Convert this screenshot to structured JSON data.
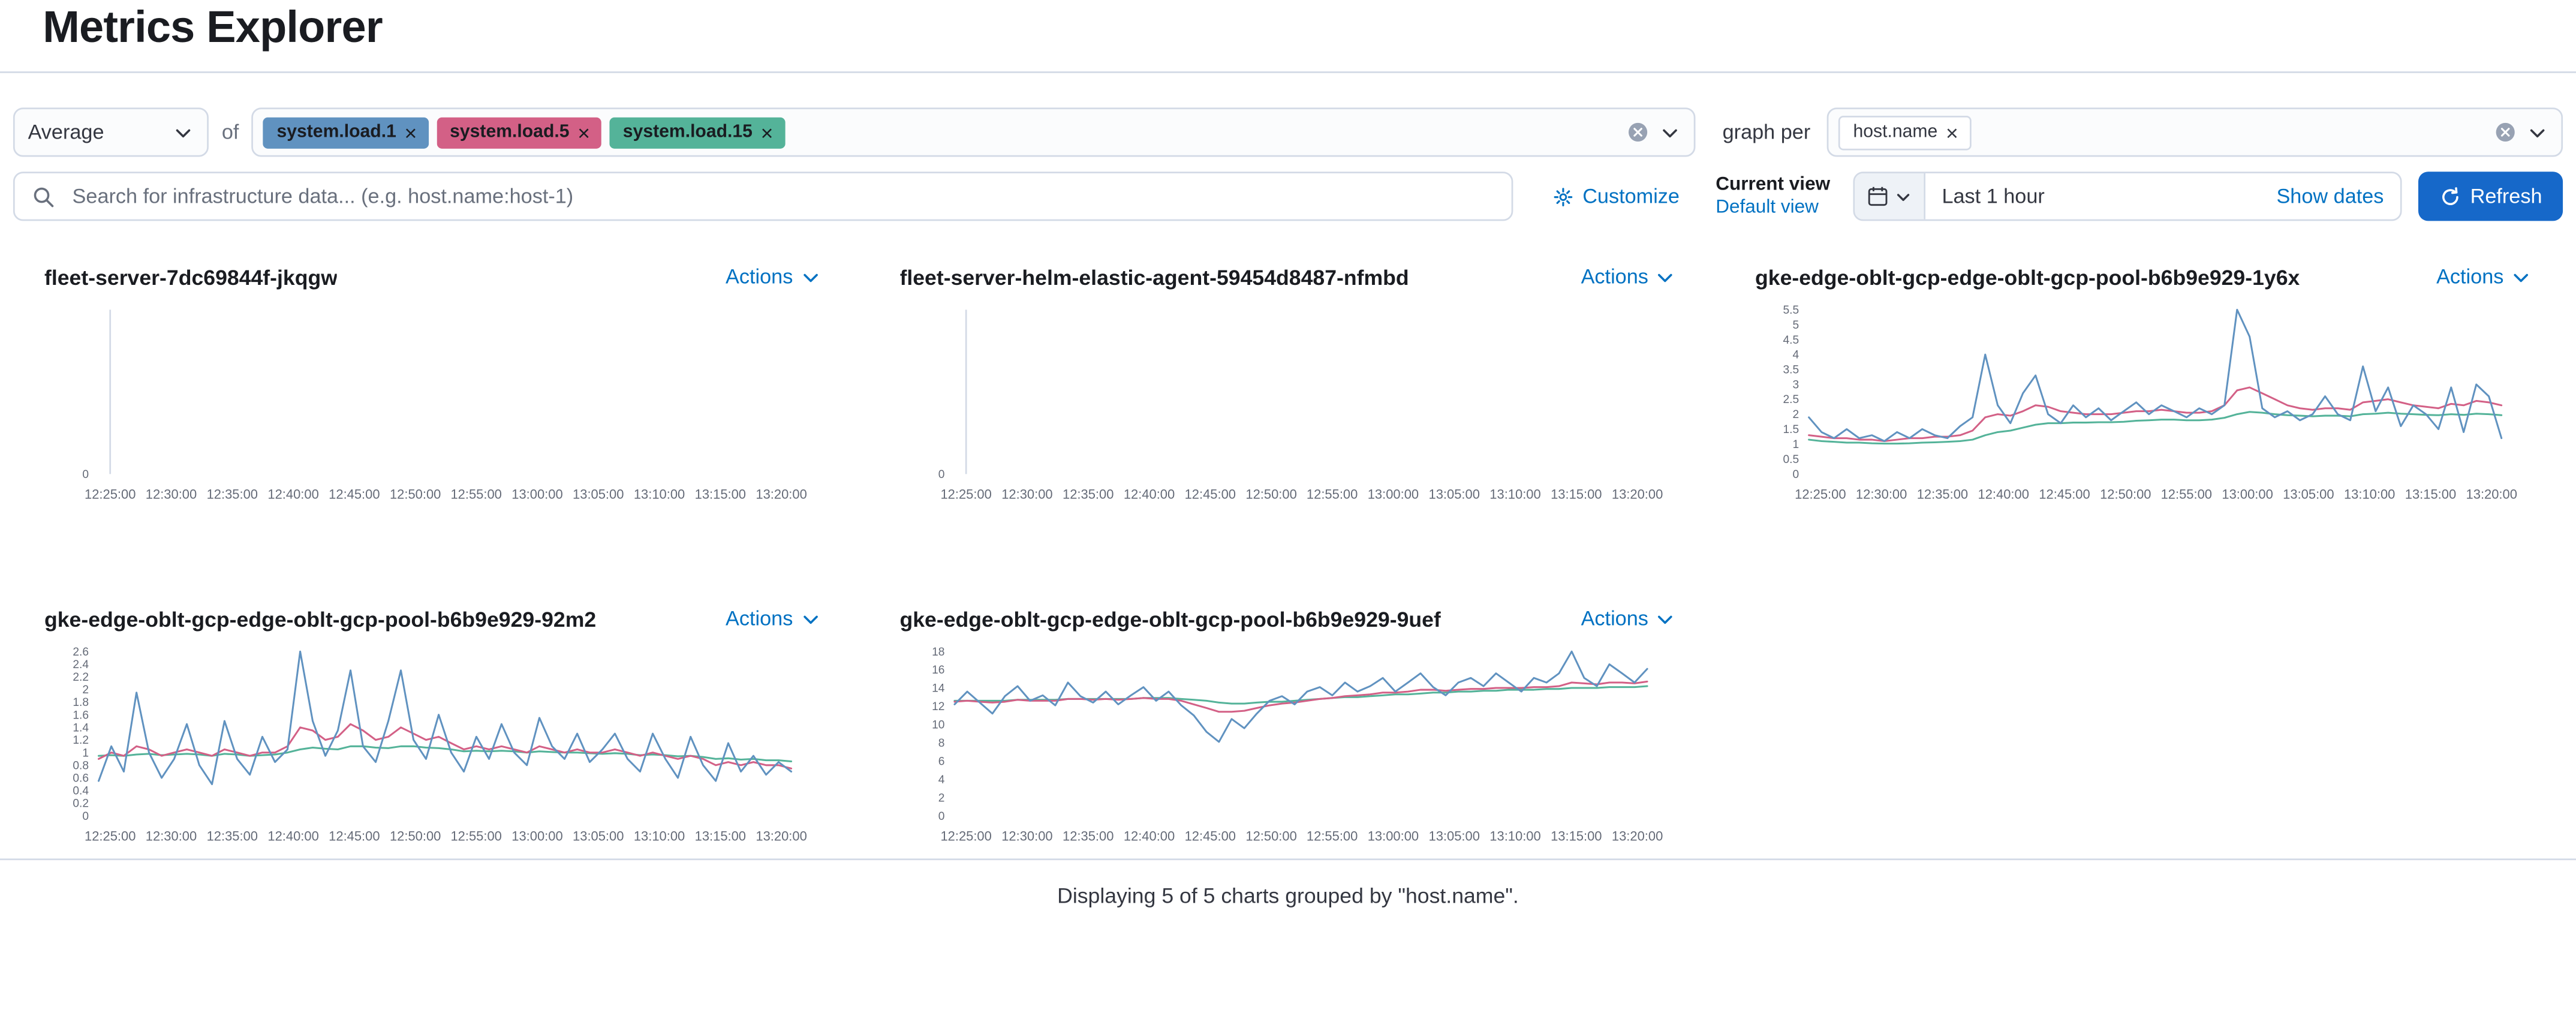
{
  "page": {
    "title": "Metrics Explorer",
    "footer": "Displaying 5 of 5 charts grouped by \"host.name\"."
  },
  "toolbar": {
    "aggregation_value": "Average",
    "of_label": "of",
    "metrics": [
      {
        "label": "system.load.1",
        "color": "#6092C0"
      },
      {
        "label": "system.load.5",
        "color": "#D36086"
      },
      {
        "label": "system.load.15",
        "color": "#54B399"
      }
    ],
    "graph_per_label": "graph per",
    "group_by": [
      {
        "label": "host.name"
      }
    ]
  },
  "searchbar": {
    "placeholder": "Search for infrastructure data... (e.g. host.name:host-1)",
    "customize_label": "Customize",
    "current_view_label": "Current view",
    "default_view_label": "Default view",
    "time_range": "Last 1 hour",
    "show_dates_label": "Show dates",
    "refresh_label": "Refresh"
  },
  "charts_common": {
    "actions_label": "Actions",
    "x_ticks": [
      "12:25:00",
      "12:30:00",
      "12:35:00",
      "12:40:00",
      "12:45:00",
      "12:50:00",
      "12:55:00",
      "13:00:00",
      "13:05:00",
      "13:10:00",
      "13:15:00",
      "13:20:00"
    ]
  },
  "chart_data": [
    {
      "type": "line",
      "title": "fleet-server-7dc69844f-jkqgw",
      "ylim": [
        0,
        1
      ],
      "yticks": [
        0
      ],
      "empty": true,
      "series": []
    },
    {
      "type": "line",
      "title": "fleet-server-helm-elastic-agent-59454d8487-nfmbd",
      "ylim": [
        0,
        1
      ],
      "yticks": [
        0
      ],
      "empty": true,
      "series": []
    },
    {
      "type": "line",
      "title": "gke-edge-oblt-gcp-edge-oblt-gcp-pool-b6b9e929-1y6x",
      "ylim": [
        0,
        5.5
      ],
      "yticks": [
        0,
        0.5,
        1,
        1.5,
        2,
        2.5,
        3,
        3.5,
        4,
        4.5,
        5,
        5.5
      ],
      "empty": false,
      "series": [
        {
          "name": "system.load.15",
          "color": "#54B399",
          "values": [
            1.15,
            1.1,
            1.08,
            1.05,
            1.05,
            1.03,
            1.02,
            1.02,
            1.03,
            1.05,
            1.06,
            1.08,
            1.1,
            1.15,
            1.3,
            1.4,
            1.45,
            1.55,
            1.65,
            1.7,
            1.7,
            1.72,
            1.72,
            1.73,
            1.73,
            1.75,
            1.78,
            1.8,
            1.82,
            1.82,
            1.8,
            1.8,
            1.82,
            1.88,
            2.0,
            2.08,
            2.05,
            2.0,
            1.97,
            1.95,
            1.93,
            1.95,
            1.95,
            1.93,
            2.0,
            2.02,
            2.05,
            2.02,
            2.0,
            1.98,
            1.97,
            2.0,
            1.98,
            2.02,
            2.0,
            1.97
          ]
        },
        {
          "name": "system.load.5",
          "color": "#D36086",
          "values": [
            1.3,
            1.25,
            1.2,
            1.2,
            1.15,
            1.15,
            1.1,
            1.15,
            1.2,
            1.2,
            1.25,
            1.25,
            1.3,
            1.45,
            1.9,
            2.0,
            1.95,
            2.1,
            2.3,
            2.25,
            2.1,
            2.05,
            2.0,
            2.0,
            2.0,
            2.05,
            2.1,
            2.1,
            2.15,
            2.1,
            2.05,
            2.05,
            2.1,
            2.3,
            2.8,
            2.9,
            2.7,
            2.5,
            2.3,
            2.2,
            2.15,
            2.2,
            2.2,
            2.15,
            2.4,
            2.45,
            2.5,
            2.4,
            2.3,
            2.25,
            2.2,
            2.35,
            2.3,
            2.45,
            2.4,
            2.3
          ]
        },
        {
          "name": "system.load.1",
          "color": "#6092C0",
          "values": [
            1.9,
            1.4,
            1.2,
            1.5,
            1.2,
            1.3,
            1.1,
            1.4,
            1.2,
            1.5,
            1.3,
            1.2,
            1.6,
            1.9,
            4.0,
            2.3,
            1.7,
            2.7,
            3.3,
            2.0,
            1.7,
            2.3,
            1.9,
            2.2,
            1.8,
            2.1,
            2.4,
            2.0,
            2.3,
            2.1,
            1.9,
            2.2,
            2.0,
            2.3,
            5.5,
            4.6,
            2.2,
            1.9,
            2.1,
            1.8,
            2.0,
            2.6,
            2.0,
            1.8,
            3.6,
            2.1,
            2.9,
            1.6,
            2.3,
            2.0,
            1.5,
            2.9,
            1.4,
            3.0,
            2.6,
            1.2
          ]
        }
      ]
    },
    {
      "type": "line",
      "title": "gke-edge-oblt-gcp-edge-oblt-gcp-pool-b6b9e929-92m2",
      "ylim": [
        0,
        2.6
      ],
      "yticks": [
        0,
        0.2,
        0.4,
        0.6,
        0.8,
        1,
        1.2,
        1.4,
        1.6,
        1.8,
        2,
        2.2,
        2.4,
        2.6
      ],
      "empty": false,
      "series": [
        {
          "name": "system.load.15",
          "color": "#54B399",
          "values": [
            0.95,
            0.96,
            0.95,
            0.97,
            0.98,
            0.96,
            0.97,
            0.98,
            0.97,
            0.95,
            0.98,
            0.97,
            0.95,
            0.96,
            0.97,
            1.0,
            1.05,
            1.08,
            1.06,
            1.05,
            1.1,
            1.1,
            1.08,
            1.07,
            1.1,
            1.1,
            1.08,
            1.07,
            1.05,
            1.02,
            1.03,
            1.02,
            1.03,
            1.02,
            1.0,
            1.02,
            1.01,
            1.0,
            1.0,
            0.99,
            0.98,
            0.99,
            0.98,
            0.96,
            0.97,
            0.96,
            0.94,
            0.95,
            0.93,
            0.9,
            0.91,
            0.89,
            0.9,
            0.88,
            0.88,
            0.86
          ]
        },
        {
          "name": "system.load.5",
          "color": "#D36086",
          "values": [
            0.9,
            1.0,
            0.95,
            1.1,
            1.05,
            0.95,
            1.0,
            1.05,
            1.0,
            0.95,
            1.05,
            1.0,
            0.95,
            1.0,
            1.0,
            1.1,
            1.4,
            1.35,
            1.2,
            1.25,
            1.45,
            1.35,
            1.2,
            1.25,
            1.4,
            1.3,
            1.2,
            1.25,
            1.15,
            1.05,
            1.1,
            1.05,
            1.1,
            1.05,
            1.0,
            1.1,
            1.05,
            1.0,
            1.05,
            1.0,
            1.0,
            1.05,
            1.0,
            0.95,
            1.0,
            0.95,
            0.9,
            0.95,
            0.9,
            0.8,
            0.85,
            0.8,
            0.85,
            0.8,
            0.8,
            0.75
          ]
        },
        {
          "name": "system.load.1",
          "color": "#6092C0",
          "values": [
            0.55,
            1.1,
            0.7,
            1.95,
            1.0,
            0.6,
            0.9,
            1.45,
            0.8,
            0.5,
            1.5,
            0.9,
            0.65,
            1.25,
            0.85,
            1.05,
            2.6,
            1.5,
            0.95,
            1.35,
            2.3,
            1.1,
            0.85,
            1.5,
            2.3,
            1.2,
            0.9,
            1.6,
            1.0,
            0.7,
            1.25,
            0.9,
            1.45,
            1.0,
            0.8,
            1.55,
            1.1,
            0.9,
            1.3,
            0.85,
            1.05,
            1.3,
            0.9,
            0.7,
            1.3,
            0.9,
            0.6,
            1.25,
            0.8,
            0.55,
            1.15,
            0.7,
            0.95,
            0.65,
            0.85,
            0.7
          ]
        }
      ]
    },
    {
      "type": "line",
      "title": "gke-edge-oblt-gcp-edge-oblt-gcp-pool-b6b9e929-9uef",
      "ylim": [
        0,
        18
      ],
      "yticks": [
        0,
        2,
        4,
        6,
        8,
        10,
        12,
        14,
        16,
        18
      ],
      "empty": false,
      "series": [
        {
          "name": "system.load.15",
          "color": "#54B399",
          "values": [
            12.6,
            12.6,
            12.6,
            12.6,
            12.6,
            12.7,
            12.7,
            12.7,
            12.7,
            12.8,
            12.8,
            12.8,
            12.8,
            12.8,
            12.8,
            12.9,
            12.9,
            12.9,
            12.8,
            12.7,
            12.6,
            12.4,
            12.3,
            12.3,
            12.4,
            12.5,
            12.5,
            12.6,
            12.7,
            12.8,
            12.9,
            13.0,
            13.0,
            13.1,
            13.2,
            13.3,
            13.3,
            13.4,
            13.5,
            13.5,
            13.6,
            13.6,
            13.7,
            13.7,
            13.8,
            13.8,
            13.8,
            13.9,
            13.9,
            14.0,
            14.0,
            14.0,
            14.1,
            14.1,
            14.1,
            14.2
          ]
        },
        {
          "name": "system.load.5",
          "color": "#D36086",
          "values": [
            12.5,
            12.6,
            12.5,
            12.4,
            12.5,
            12.7,
            12.6,
            12.6,
            12.6,
            12.8,
            12.8,
            12.7,
            12.8,
            12.7,
            12.8,
            12.9,
            12.8,
            12.8,
            12.6,
            12.2,
            11.8,
            11.4,
            11.4,
            11.5,
            11.8,
            12.1,
            12.3,
            12.4,
            12.6,
            12.8,
            12.9,
            13.1,
            13.2,
            13.3,
            13.5,
            13.5,
            13.6,
            13.8,
            13.8,
            13.7,
            13.8,
            13.9,
            13.9,
            14.0,
            14.0,
            14.0,
            14.1,
            14.1,
            14.2,
            14.6,
            14.5,
            14.4,
            14.6,
            14.6,
            14.5,
            14.7
          ]
        },
        {
          "name": "system.load.1",
          "color": "#6092C0",
          "values": [
            12.2,
            13.6,
            12.4,
            11.2,
            13.1,
            14.2,
            12.6,
            13.2,
            12.1,
            14.6,
            13.1,
            12.4,
            13.6,
            12.2,
            13.2,
            14.1,
            12.6,
            13.6,
            12.1,
            11.0,
            9.2,
            8.1,
            10.6,
            9.6,
            11.2,
            12.6,
            13.1,
            12.2,
            13.6,
            14.1,
            13.2,
            14.6,
            13.6,
            14.2,
            15.1,
            13.6,
            14.6,
            15.6,
            14.1,
            13.2,
            14.6,
            15.1,
            14.2,
            15.6,
            14.6,
            13.6,
            15.1,
            14.6,
            15.6,
            18.0,
            15.1,
            14.2,
            16.6,
            15.6,
            14.6,
            16.1
          ]
        }
      ]
    }
  ]
}
